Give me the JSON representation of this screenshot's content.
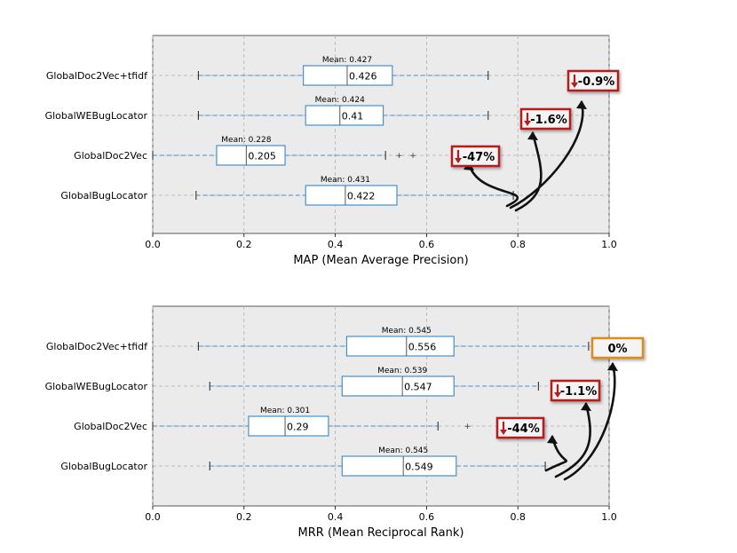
{
  "chart_data": [
    {
      "type": "boxplot",
      "xlabel": "MAP (Mean Average Precision)",
      "xlim": [
        0.0,
        1.0
      ],
      "xticks": [
        "0.0",
        "0.2",
        "0.4",
        "0.6",
        "0.8",
        "1.0"
      ],
      "grid": true,
      "categories": [
        "GlobalDoc2Vec+tfidf",
        "GlobalWEBugLocator",
        "GlobalDoc2Vec",
        "GlobalBugLocator"
      ],
      "boxes": [
        {
          "label": "GlobalDoc2Vec+tfidf",
          "whisker_low": 0.1,
          "q1": 0.33,
          "median": 0.426,
          "q3": 0.525,
          "whisker_high": 0.735,
          "outliers": [],
          "median_text": "0.426",
          "mean_text": "Mean: 0.427"
        },
        {
          "label": "GlobalWEBugLocator",
          "whisker_low": 0.1,
          "q1": 0.335,
          "median": 0.41,
          "q3": 0.505,
          "whisker_high": 0.735,
          "outliers": [],
          "median_text": "0.41",
          "mean_text": "Mean: 0.424"
        },
        {
          "label": "GlobalDoc2Vec",
          "whisker_low": 0.0,
          "q1": 0.14,
          "median": 0.205,
          "q3": 0.29,
          "whisker_high": 0.51,
          "outliers": [
            0.54,
            0.57
          ],
          "median_text": "0.205",
          "mean_text": "Mean: 0.228"
        },
        {
          "label": "GlobalBugLocator",
          "whisker_low": 0.095,
          "q1": 0.335,
          "median": 0.422,
          "q3": 0.535,
          "whisker_high": 0.79,
          "outliers": [],
          "median_text": "0.422",
          "mean_text": "Mean: 0.431"
        }
      ],
      "annotations": [
        {
          "text": "-0.9%",
          "arrow": "down",
          "color": "#b71c1c",
          "category": "GlobalDoc2Vec+tfidf"
        },
        {
          "text": "-1.6%",
          "arrow": "down",
          "color": "#b71c1c",
          "category": "GlobalWEBugLocator"
        },
        {
          "text": "-47%",
          "arrow": "down",
          "color": "#b71c1c",
          "category": "GlobalDoc2Vec"
        }
      ]
    },
    {
      "type": "boxplot",
      "xlabel": "MRR (Mean Reciprocal Rank)",
      "xlim": [
        0.0,
        1.0
      ],
      "xticks": [
        "0.0",
        "0.2",
        "0.4",
        "0.6",
        "0.8",
        "1.0"
      ],
      "grid": true,
      "categories": [
        "GlobalDoc2Vec+tfidf",
        "GlobalWEBugLocator",
        "GlobalDoc2Vec",
        "GlobalBugLocator"
      ],
      "boxes": [
        {
          "label": "GlobalDoc2Vec+tfidf",
          "whisker_low": 0.1,
          "q1": 0.425,
          "median": 0.556,
          "q3": 0.66,
          "whisker_high": 0.955,
          "outliers": [],
          "median_text": "0.556",
          "mean_text": "Mean: 0.545"
        },
        {
          "label": "GlobalWEBugLocator",
          "whisker_low": 0.125,
          "q1": 0.415,
          "median": 0.547,
          "q3": 0.66,
          "whisker_high": 0.845,
          "outliers": [],
          "median_text": "0.547",
          "mean_text": "Mean: 0.539"
        },
        {
          "label": "GlobalDoc2Vec",
          "whisker_low": 0.0,
          "q1": 0.21,
          "median": 0.29,
          "q3": 0.385,
          "whisker_high": 0.625,
          "outliers": [
            0.69
          ],
          "median_text": "0.29",
          "mean_text": "Mean: 0.301"
        },
        {
          "label": "GlobalBugLocator",
          "whisker_low": 0.125,
          "q1": 0.415,
          "median": 0.549,
          "q3": 0.665,
          "whisker_high": 0.86,
          "outliers": [],
          "median_text": "0.549",
          "mean_text": "Mean: 0.545"
        }
      ],
      "annotations": [
        {
          "text": "0%",
          "arrow": "none",
          "color": "#e08a1e",
          "category": "GlobalDoc2Vec+tfidf"
        },
        {
          "text": "-1.1%",
          "arrow": "down",
          "color": "#b71c1c",
          "category": "GlobalWEBugLocator"
        },
        {
          "text": "-44%",
          "arrow": "down",
          "color": "#b71c1c",
          "category": "GlobalDoc2Vec"
        }
      ]
    }
  ],
  "colors": {
    "plot_bg": "#ebebeb",
    "box": "#4a90c8",
    "whisker": "#4a90c8",
    "median": "#555555",
    "grid": "#b0b0b0",
    "callout_down": "#b71c1c",
    "callout_neutral": "#e08a1e",
    "curve": "#111111"
  }
}
